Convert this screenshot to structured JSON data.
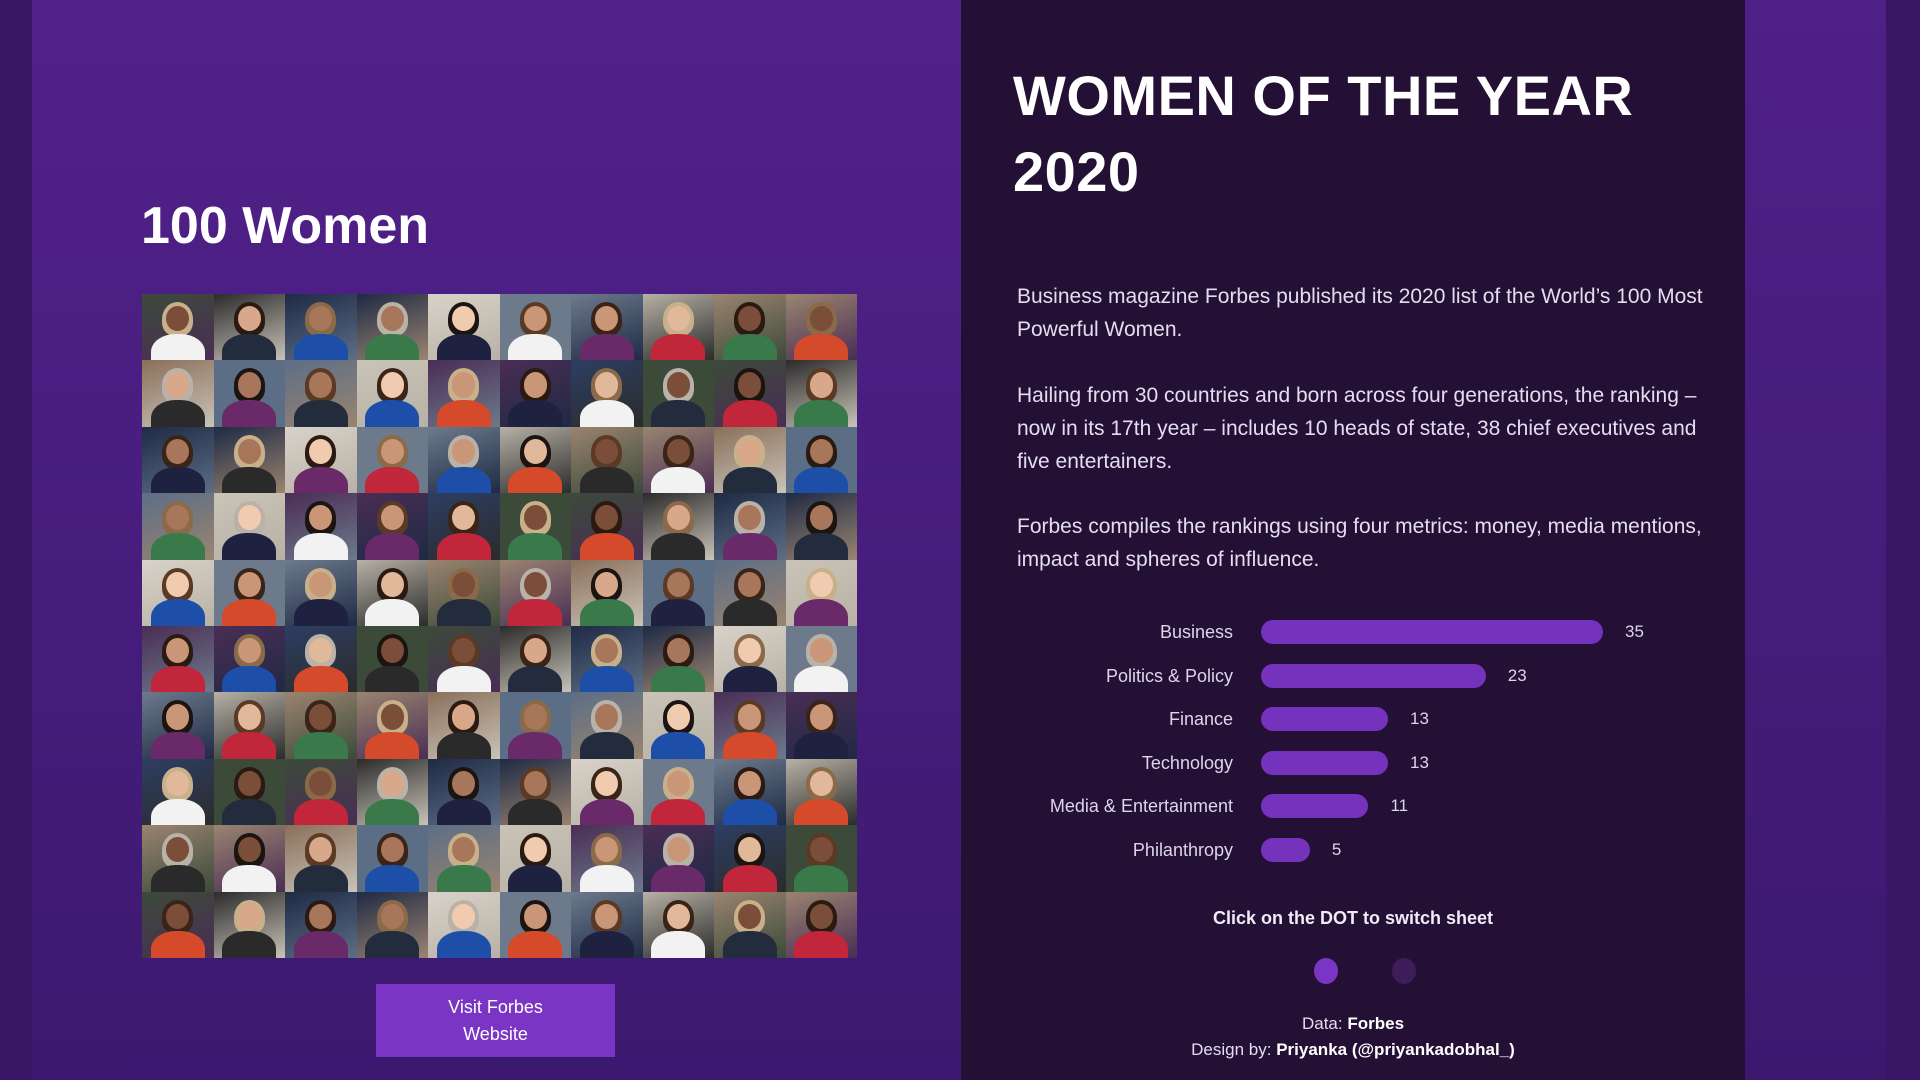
{
  "left": {
    "heading": "100 Women",
    "grid_rows": 10,
    "grid_cols": 10,
    "button_label": "Visit Forbes Website"
  },
  "right": {
    "title_line1": "WOMEN OF THE YEAR",
    "title_line2": "2020",
    "paragraphs": [
      "Business magazine Forbes published its 2020 list of the World’s 100 Most Powerful Women.",
      "Hailing from 30 countries and born across four generations, the ranking – now in its 17th year – includes 10 heads of state, 38 chief executives and five entertainers.",
      "Forbes compiles the rankings using four metrics: money, media mentions, impact and spheres of influence."
    ],
    "switch_hint": "Click on the DOT to switch sheet",
    "dots": [
      {
        "active": true
      },
      {
        "active": false
      }
    ],
    "data_label": "Data:",
    "data_source": "Forbes",
    "design_label": "Design by:",
    "design_author": "Priyanka (@priyankadobhal_)"
  },
  "colors": {
    "panel_purple": "#4f2088",
    "panel_dark": "#241034",
    "accent": "#7432bd",
    "dot_inactive": "#3e1c5a"
  },
  "chart_data": {
    "type": "bar",
    "orientation": "horizontal",
    "categories": [
      "Business",
      "Politics & Policy",
      "Finance",
      "Technology",
      "Media & Entertainment",
      "Philanthropy"
    ],
    "values": [
      35,
      23,
      13,
      13,
      11,
      5
    ],
    "data_labels": true,
    "grid": false
  }
}
